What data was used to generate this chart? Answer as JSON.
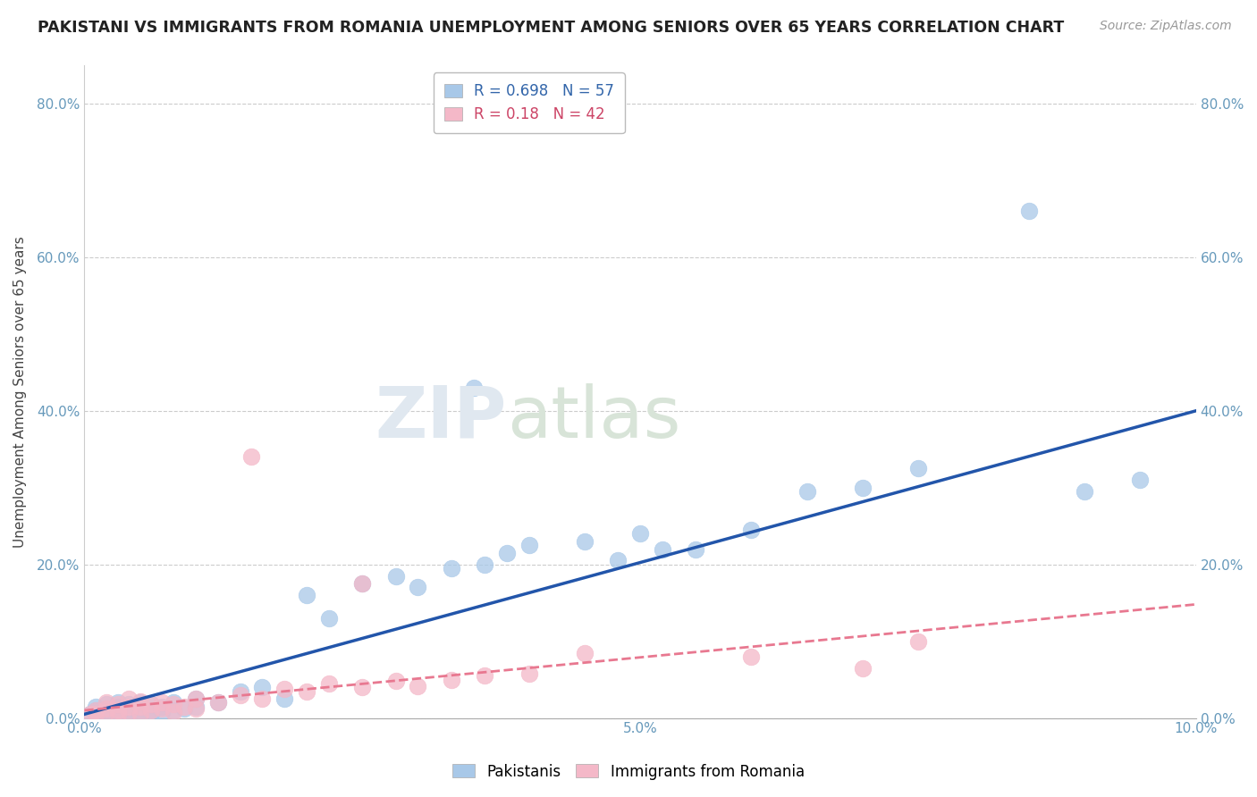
{
  "title": "PAKISTANI VS IMMIGRANTS FROM ROMANIA UNEMPLOYMENT AMONG SENIORS OVER 65 YEARS CORRELATION CHART",
  "source": "Source: ZipAtlas.com",
  "ylabel": "Unemployment Among Seniors over 65 years",
  "xlim": [
    0.0,
    0.1
  ],
  "ylim": [
    0.0,
    0.85
  ],
  "yticks": [
    0.0,
    0.2,
    0.4,
    0.6,
    0.8
  ],
  "ytick_labels": [
    "0.0%",
    "20.0%",
    "40.0%",
    "60.0%",
    "80.0%"
  ],
  "xtick_positions": [
    0.0,
    0.01,
    0.02,
    0.03,
    0.04,
    0.05,
    0.06,
    0.07,
    0.08,
    0.09,
    0.1
  ],
  "xtick_labels": [
    "0.0%",
    "",
    "",
    "",
    "",
    "5.0%",
    "",
    "",
    "",
    "",
    "10.0%"
  ],
  "blue_scatter_color": "#a8c8e8",
  "pink_scatter_color": "#f4b8c8",
  "blue_line_color": "#2255aa",
  "pink_line_color": "#e87890",
  "blue_r": 0.698,
  "blue_n": 57,
  "pink_r": 0.18,
  "pink_n": 42,
  "pakistani_x": [
    0.0005,
    0.001,
    0.001,
    0.001,
    0.002,
    0.002,
    0.002,
    0.002,
    0.003,
    0.003,
    0.003,
    0.003,
    0.003,
    0.004,
    0.004,
    0.004,
    0.004,
    0.005,
    0.005,
    0.005,
    0.005,
    0.006,
    0.006,
    0.006,
    0.007,
    0.007,
    0.008,
    0.008,
    0.009,
    0.01,
    0.01,
    0.012,
    0.014,
    0.016,
    0.018,
    0.02,
    0.022,
    0.025,
    0.028,
    0.03,
    0.033,
    0.036,
    0.038,
    0.04,
    0.045,
    0.048,
    0.05,
    0.055,
    0.06,
    0.065,
    0.035,
    0.052,
    0.07,
    0.075,
    0.085,
    0.09,
    0.095
  ],
  "pakistani_y": [
    0.005,
    0.008,
    0.01,
    0.015,
    0.005,
    0.01,
    0.012,
    0.018,
    0.005,
    0.008,
    0.01,
    0.015,
    0.02,
    0.005,
    0.008,
    0.012,
    0.018,
    0.005,
    0.01,
    0.015,
    0.02,
    0.005,
    0.01,
    0.018,
    0.008,
    0.015,
    0.01,
    0.02,
    0.012,
    0.015,
    0.025,
    0.02,
    0.035,
    0.04,
    0.025,
    0.16,
    0.13,
    0.175,
    0.185,
    0.17,
    0.195,
    0.2,
    0.215,
    0.225,
    0.23,
    0.205,
    0.24,
    0.22,
    0.245,
    0.295,
    0.43,
    0.22,
    0.3,
    0.325,
    0.66,
    0.295,
    0.31
  ],
  "romania_x": [
    0.0005,
    0.001,
    0.001,
    0.002,
    0.002,
    0.002,
    0.003,
    0.003,
    0.003,
    0.004,
    0.004,
    0.004,
    0.005,
    0.005,
    0.005,
    0.006,
    0.006,
    0.007,
    0.007,
    0.008,
    0.008,
    0.009,
    0.01,
    0.01,
    0.012,
    0.014,
    0.016,
    0.018,
    0.02,
    0.022,
    0.025,
    0.028,
    0.03,
    0.033,
    0.036,
    0.04,
    0.015,
    0.025,
    0.06,
    0.07,
    0.045,
    0.075
  ],
  "romania_y": [
    0.005,
    0.005,
    0.01,
    0.008,
    0.012,
    0.02,
    0.005,
    0.01,
    0.018,
    0.008,
    0.015,
    0.025,
    0.005,
    0.015,
    0.022,
    0.01,
    0.018,
    0.012,
    0.02,
    0.008,
    0.018,
    0.015,
    0.012,
    0.025,
    0.02,
    0.03,
    0.025,
    0.038,
    0.035,
    0.045,
    0.04,
    0.048,
    0.042,
    0.05,
    0.055,
    0.058,
    0.34,
    0.175,
    0.08,
    0.065,
    0.085,
    0.1
  ]
}
